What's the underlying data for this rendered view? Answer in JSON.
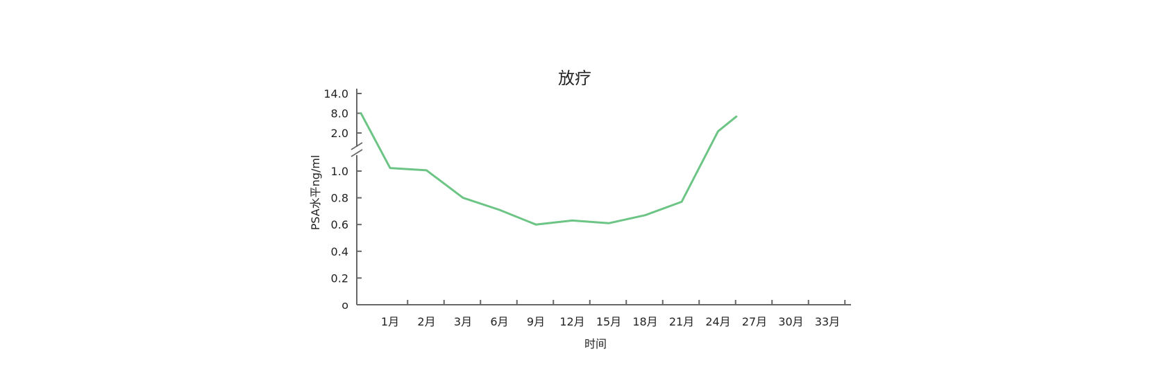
{
  "chart_data": {
    "type": "line",
    "title": "放疗",
    "xlabel": "时间",
    "ylabel": "PSA水平ng/ml",
    "categories": [
      "1月",
      "2月",
      "3月",
      "6月",
      "9月",
      "12月",
      "15月",
      "18月",
      "21月",
      "24月",
      "27月",
      "30月",
      "33月"
    ],
    "y_axis": {
      "broken": true,
      "lower_ticks": [
        "o",
        "0.2",
        "0.4",
        "0.6",
        "0.8",
        "1.0"
      ],
      "upper_ticks": [
        "2.0",
        "8.0",
        "14.0"
      ],
      "lower_range": [
        0,
        1.0
      ],
      "upper_range": [
        2.0,
        14.0
      ]
    },
    "series": [
      {
        "color": "#6cc485",
        "points": [
          {
            "x": "start",
            "y": 8.0
          },
          {
            "x": "1月",
            "y": 1.08
          },
          {
            "x": "2月",
            "y": 1.02
          },
          {
            "x": "3月",
            "y": 0.8
          },
          {
            "x": "6月",
            "y": 0.71
          },
          {
            "x": "9月",
            "y": 0.6
          },
          {
            "x": "12月",
            "y": 0.63
          },
          {
            "x": "15月",
            "y": 0.61
          },
          {
            "x": "18月",
            "y": 0.67
          },
          {
            "x": "21月",
            "y": 0.77
          },
          {
            "x": "24月",
            "y": 2.5
          },
          {
            "x": "24月+",
            "y": 7.0
          }
        ]
      }
    ],
    "grid": false,
    "legend": "none"
  }
}
